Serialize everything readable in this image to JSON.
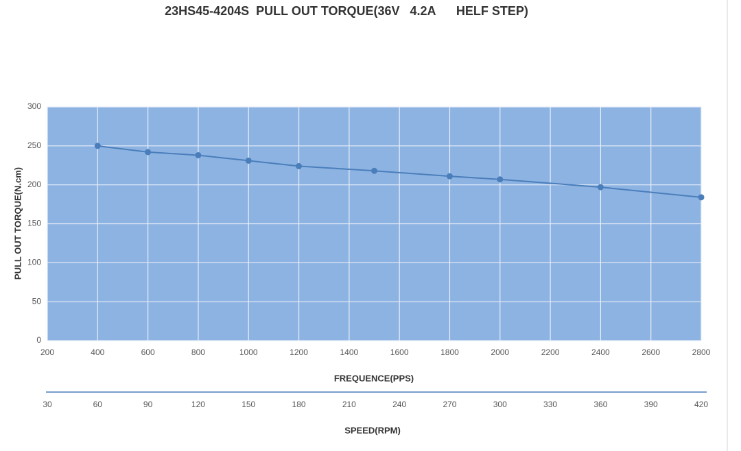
{
  "chart_data": {
    "type": "line",
    "title": "23HS45-4204S  PULL OUT TORQUE(36V   4.2A      HELF STEP)",
    "xlabel": "FREQUENCE(PPS)",
    "x2label": "SPEED(RPM)",
    "ylabel": "PULL OUT TORQUE(N.cm)",
    "x": [
      400,
      600,
      800,
      1000,
      1200,
      1500,
      1800,
      2000,
      2400,
      2800
    ],
    "series": [
      {
        "color": "#4a7ebb",
        "values": [
          250,
          242,
          238,
          231,
          224,
          218,
          211,
          207,
          197,
          184
        ]
      }
    ],
    "xlim": [
      200,
      2800
    ],
    "xticks": [
      200,
      400,
      600,
      800,
      1000,
      1200,
      1400,
      1600,
      1800,
      2000,
      2200,
      2400,
      2600,
      2800
    ],
    "x2lim": [
      30,
      420
    ],
    "x2ticks": [
      30,
      60,
      90,
      120,
      150,
      180,
      210,
      240,
      270,
      300,
      330,
      360,
      390,
      420
    ],
    "ylim": [
      0,
      300
    ],
    "yticks": [
      0,
      50,
      100,
      150,
      200,
      250,
      300
    ],
    "grid": true,
    "background": "#8db3e2"
  }
}
